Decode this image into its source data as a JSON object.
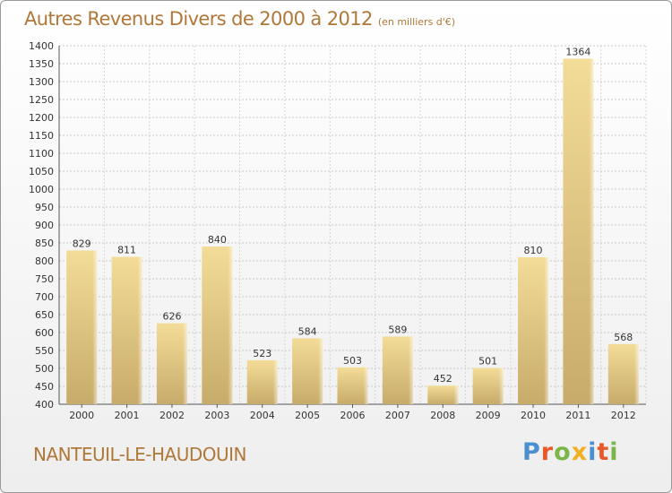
{
  "chart_data": {
    "type": "bar",
    "title": "Autres Revenus Divers de 2000 à 2012",
    "subtitle": "(en milliers d'€)",
    "categories": [
      "2000",
      "2001",
      "2002",
      "2003",
      "2004",
      "2005",
      "2006",
      "2007",
      "2008",
      "2009",
      "2010",
      "2011",
      "2012"
    ],
    "values": [
      829,
      811,
      626,
      840,
      523,
      584,
      503,
      589,
      452,
      501,
      810,
      1364,
      568
    ],
    "ylim": [
      400,
      1400
    ],
    "yticks": [
      400,
      450,
      500,
      550,
      600,
      650,
      700,
      750,
      800,
      850,
      900,
      950,
      1000,
      1050,
      1100,
      1150,
      1200,
      1250,
      1300,
      1350,
      1400
    ],
    "grid": true,
    "bar_color": "#e3c883",
    "title_color": "#b07838"
  },
  "place": "NANTEUIL-LE-HAUDOUIN",
  "logo": {
    "text": "Proxiti",
    "letters": [
      "P",
      "r",
      "o",
      "x",
      "i",
      "t",
      "i"
    ]
  }
}
